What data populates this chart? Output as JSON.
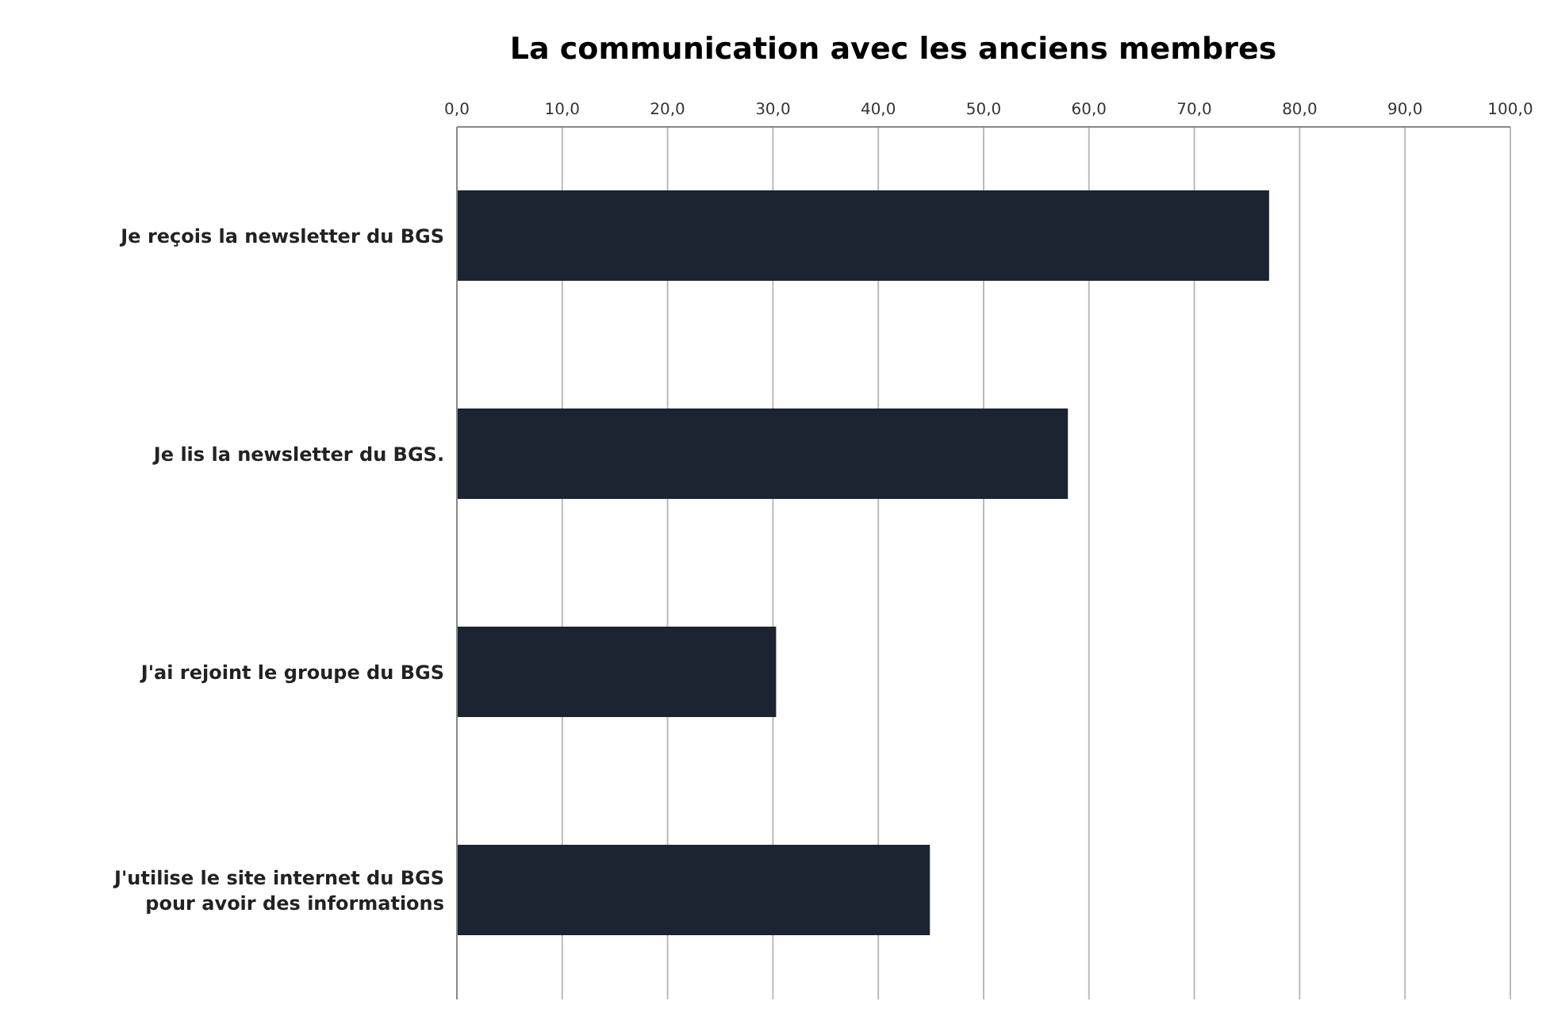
{
  "chart_data": {
    "type": "bar",
    "orientation": "horizontal",
    "title": "La communication avec les anciens membres",
    "categories": [
      "Je reçois la newsletter du BGS",
      "Je lis la newsletter du BGS.",
      "J'ai rejoint le groupe du BGS",
      "J'utilise le site internet du BGS pour avoir des informations"
    ],
    "values": [
      77.1,
      58.0,
      30.3,
      44.9
    ],
    "color": "#1b2430",
    "xlim": [
      0,
      100
    ],
    "xticks": [
      {
        "value": 0,
        "label": "0,0"
      },
      {
        "value": 10,
        "label": "10,0"
      },
      {
        "value": 20,
        "label": "20,0"
      },
      {
        "value": 30,
        "label": "30,0"
      },
      {
        "value": 40,
        "label": "40,0"
      },
      {
        "value": 50,
        "label": "50,0"
      },
      {
        "value": 60,
        "label": "60,0"
      },
      {
        "value": 70,
        "label": "70,0"
      },
      {
        "value": 80,
        "label": "80,0"
      },
      {
        "value": 90,
        "label": "90,0"
      },
      {
        "value": 100,
        "label": "100,0"
      }
    ],
    "grid": "x"
  }
}
